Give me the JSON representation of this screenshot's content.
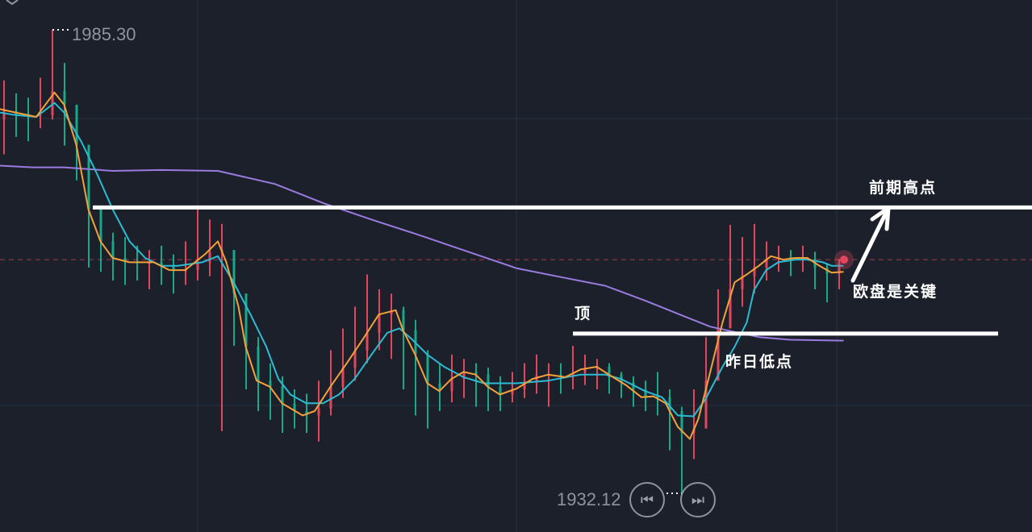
{
  "chart_data": {
    "type": "candlestick",
    "title": "",
    "colors": {
      "up": "#e0475d",
      "down": "#17a98a",
      "ma_fast": "#f5a13a",
      "ma_mid": "#2bbcd4",
      "ma_slow": "#9b7be0",
      "grid": "#273040",
      "annotation": "#ffffff",
      "current": "#e0475d"
    },
    "ylim": [
      1932.12,
      1985.3
    ],
    "high_label": "1985.30",
    "low_label": "1932.12",
    "current_price": 1958.9,
    "close": [
      1976.0,
      1975.6,
      1975.4,
      1975.5,
      1978.3,
      1976.7,
      1972.1,
      1964.7,
      1961.0,
      1959.1,
      1958.7,
      1958.6,
      1958.6,
      1958.2,
      1957.7,
      1957.7,
      1958.6,
      1959.8,
      1960.0,
      1955.0,
      1948.9,
      1945.0,
      1944.3,
      1942.4,
      1941.5,
      1941.0,
      1941.8,
      1944.3,
      1946.5,
      1948.5,
      1950.5,
      1952.6,
      1953.1,
      1950.8,
      1948.0,
      1944.7,
      1943.8,
      1945.2,
      1946.0,
      1945.7,
      1944.3,
      1943.4,
      1944.0,
      1944.8,
      1945.6,
      1945.7,
      1945.5,
      1945.9,
      1946.4,
      1946.6,
      1945.7,
      1944.8,
      1944.0,
      1943.2,
      1943.1,
      1941.5,
      1939.0,
      1939.5,
      1945.0,
      1951.0,
      1955.5,
      1957.0,
      1958.0,
      1959.0,
      1959.2,
      1958.9,
      1959.0,
      1958.0,
      1957.3,
      1958.5
    ],
    "high": [
      1979.5,
      1978.0,
      1977.5,
      1979.8,
      1985.3,
      1981.5,
      1976.5,
      1970.0,
      1965.0,
      1962.0,
      1961.5,
      1960.5,
      1960.0,
      1960.5,
      1959.5,
      1961.0,
      1964.7,
      1963.5,
      1963.0,
      1960.0,
      1955.0,
      1950.0,
      1947.0,
      1945.5,
      1944.0,
      1943.5,
      1945.0,
      1948.5,
      1951.0,
      1953.5,
      1957.2,
      1955.5,
      1955.0,
      1953.5,
      1952.0,
      1948.5,
      1947.0,
      1948.0,
      1947.5,
      1947.0,
      1946.5,
      1945.5,
      1946.0,
      1947.0,
      1948.0,
      1947.0,
      1947.0,
      1949.0,
      1948.0,
      1947.5,
      1947.0,
      1946.0,
      1945.5,
      1945.0,
      1946.0,
      1944.0,
      1942.0,
      1944.0,
      1950.0,
      1955.5,
      1962.9,
      1961.5,
      1963.0,
      1961.0,
      1960.5,
      1960.0,
      1960.5,
      1959.8,
      1958.5,
      1959.0
    ],
    "low": [
      1971.0,
      1973.0,
      1972.5,
      1974.0,
      1975.0,
      1972.0,
      1968.0,
      1958.0,
      1957.5,
      1956.5,
      1956.0,
      1956.5,
      1955.5,
      1956.0,
      1955.0,
      1956.0,
      1956.5,
      1957.0,
      1939.2,
      1949.0,
      1944.0,
      1941.5,
      1940.5,
      1939.0,
      1939.5,
      1939.0,
      1938.0,
      1941.0,
      1943.0,
      1945.0,
      1947.0,
      1948.5,
      1947.5,
      1944.0,
      1941.0,
      1939.5,
      1941.5,
      1942.5,
      1943.0,
      1942.0,
      1941.5,
      1941.5,
      1942.5,
      1943.0,
      1943.5,
      1942.0,
      1943.5,
      1944.0,
      1944.5,
      1944.0,
      1943.5,
      1943.0,
      1942.0,
      1941.5,
      1941.0,
      1937.0,
      1932.1,
      1936.0,
      1939.5,
      1947.0,
      1952.0,
      1953.5,
      1955.0,
      1956.5,
      1957.5,
      1957.0,
      1957.5,
      1955.5,
      1954.0,
      1955.5
    ],
    "first_open": 1975.0,
    "ma_fast": [
      [
        0,
        1976.2
      ],
      [
        1.3,
        1975.8
      ],
      [
        3,
        1975.3
      ],
      [
        4.5,
        1978.1
      ],
      [
        5.3,
        1976.7
      ],
      [
        6.3,
        1972.1
      ],
      [
        7.3,
        1964.7
      ],
      [
        8.3,
        1961.0
      ],
      [
        9.3,
        1959.1
      ],
      [
        10.7,
        1958.6
      ],
      [
        12.7,
        1958.6
      ],
      [
        14,
        1957.7
      ],
      [
        15.3,
        1957.7
      ],
      [
        17,
        1959.6
      ],
      [
        18,
        1961.0
      ],
      [
        18.7,
        1958.6
      ],
      [
        19.7,
        1953.5
      ],
      [
        20.3,
        1948.9
      ],
      [
        21.2,
        1945.0
      ],
      [
        22.3,
        1944.3
      ],
      [
        23.3,
        1942.4
      ],
      [
        25,
        1941.0
      ],
      [
        26,
        1941.5
      ],
      [
        27.3,
        1944.3
      ],
      [
        28.7,
        1947.1
      ],
      [
        30,
        1949.8
      ],
      [
        31.3,
        1952.6
      ],
      [
        32.7,
        1953.1
      ],
      [
        33.3,
        1950.8
      ],
      [
        34.3,
        1948.0
      ],
      [
        35.3,
        1944.7
      ],
      [
        36.3,
        1943.8
      ],
      [
        37.3,
        1945.2
      ],
      [
        38.3,
        1946.0
      ],
      [
        39.3,
        1945.7
      ],
      [
        40.3,
        1944.3
      ],
      [
        41.3,
        1943.4
      ],
      [
        42.7,
        1944.1
      ],
      [
        44,
        1945.2
      ],
      [
        45.3,
        1945.7
      ],
      [
        46.7,
        1945.4
      ],
      [
        48,
        1946.3
      ],
      [
        49.3,
        1946.6
      ],
      [
        50.3,
        1945.7
      ],
      [
        51.7,
        1944.5
      ],
      [
        53,
        1943.1
      ],
      [
        54,
        1943.2
      ],
      [
        55,
        1942.4
      ],
      [
        56,
        1939.7
      ],
      [
        57,
        1938.3
      ],
      [
        57.7,
        1940.6
      ],
      [
        58.7,
        1946.1
      ],
      [
        59.7,
        1951.7
      ],
      [
        60.7,
        1956.3
      ],
      [
        61.7,
        1957.2
      ],
      [
        62.7,
        1958.2
      ],
      [
        63.7,
        1959.3
      ],
      [
        64.7,
        1958.9
      ],
      [
        65.7,
        1959.1
      ],
      [
        66.7,
        1959.1
      ],
      [
        67.7,
        1958.2
      ],
      [
        68.7,
        1957.4
      ],
      [
        69.7,
        1957.5
      ]
    ],
    "ma_mid": [
      [
        0,
        1975.8
      ],
      [
        1.3,
        1975.5
      ],
      [
        3,
        1975.3
      ],
      [
        4.5,
        1976.9
      ],
      [
        5.3,
        1975.8
      ],
      [
        6.7,
        1972.5
      ],
      [
        8,
        1968.8
      ],
      [
        9.3,
        1964.7
      ],
      [
        10.7,
        1961.0
      ],
      [
        12,
        1959.1
      ],
      [
        13.3,
        1958.2
      ],
      [
        14.7,
        1958.2
      ],
      [
        16.7,
        1958.6
      ],
      [
        18,
        1959.3
      ],
      [
        19.3,
        1956.3
      ],
      [
        20.7,
        1952.6
      ],
      [
        22,
        1948.9
      ],
      [
        23,
        1945.2
      ],
      [
        24,
        1943.4
      ],
      [
        25.3,
        1942.4
      ],
      [
        26.7,
        1942.4
      ],
      [
        28,
        1943.4
      ],
      [
        29.3,
        1945.2
      ],
      [
        30.7,
        1948.0
      ],
      [
        32,
        1950.5
      ],
      [
        33,
        1951.0
      ],
      [
        34,
        1949.8
      ],
      [
        35.3,
        1948.0
      ],
      [
        36.7,
        1946.6
      ],
      [
        38.3,
        1945.4
      ],
      [
        40,
        1944.7
      ],
      [
        42.7,
        1944.7
      ],
      [
        45.3,
        1945.0
      ],
      [
        48,
        1945.7
      ],
      [
        50,
        1945.7
      ],
      [
        51.3,
        1945.2
      ],
      [
        53.3,
        1943.8
      ],
      [
        54.7,
        1943.1
      ],
      [
        56,
        1941.0
      ],
      [
        57.3,
        1940.9
      ],
      [
        58.3,
        1942.9
      ],
      [
        59.7,
        1946.6
      ],
      [
        60.7,
        1948.9
      ],
      [
        61.7,
        1951.7
      ],
      [
        62.3,
        1955.4
      ],
      [
        63.3,
        1957.7
      ],
      [
        64.3,
        1958.6
      ],
      [
        65.7,
        1958.9
      ],
      [
        66.7,
        1958.9
      ],
      [
        68,
        1958.6
      ],
      [
        68.7,
        1958.2
      ],
      [
        69.7,
        1958.2
      ]
    ],
    "ma_slow": [
      [
        0,
        1969.7
      ],
      [
        2.7,
        1969.5
      ],
      [
        5.3,
        1969.5
      ],
      [
        9.3,
        1969.1
      ],
      [
        13.3,
        1969.2
      ],
      [
        18,
        1969.1
      ],
      [
        22.7,
        1967.6
      ],
      [
        26.7,
        1965.4
      ],
      [
        30.7,
        1963.5
      ],
      [
        34.7,
        1961.7
      ],
      [
        38.7,
        1959.8
      ],
      [
        42.7,
        1957.9
      ],
      [
        46.7,
        1956.8
      ],
      [
        50,
        1955.9
      ],
      [
        53.3,
        1954.2
      ],
      [
        56.7,
        1952.3
      ],
      [
        58.7,
        1951.2
      ],
      [
        60.7,
        1950.6
      ],
      [
        62.7,
        1950.0
      ],
      [
        65.3,
        1949.7
      ],
      [
        69.7,
        1949.6
      ]
    ],
    "annotations": {
      "resistance_level": 1964.9,
      "support_level": 1950.4,
      "resistance_label": "前期高点",
      "support_label": "昨日低点",
      "top_label": "顶",
      "note_label": "欧盘是关键"
    }
  },
  "controls": {
    "prev_icon": "skip-back-icon",
    "next_icon": "skip-forward-icon"
  }
}
